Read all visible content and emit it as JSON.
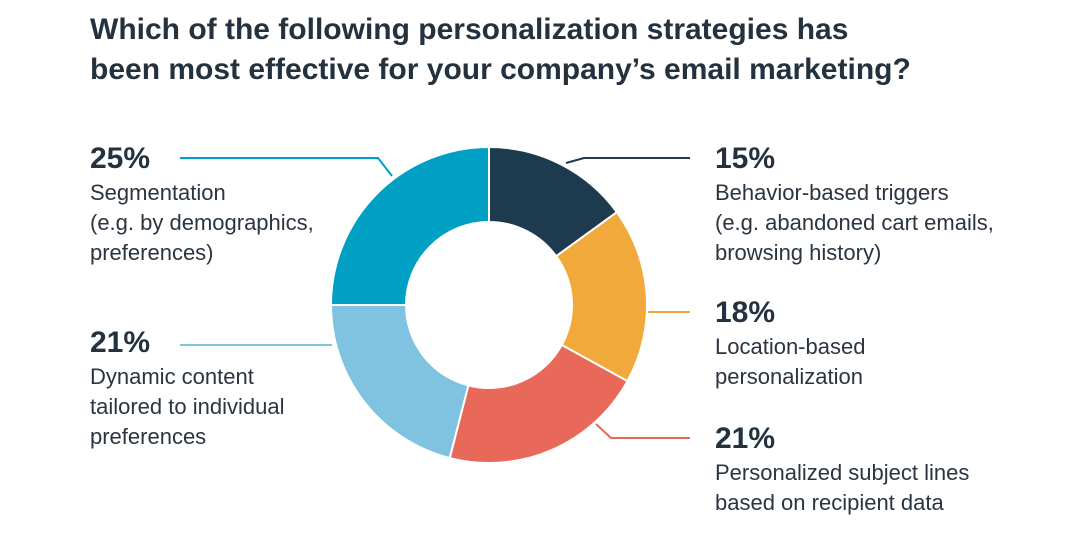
{
  "chart_data": {
    "type": "pie",
    "title_lines": [
      "Which of the following personalization strategies has",
      "been most effective for your company’s email marketing?"
    ],
    "donut": true,
    "slices": [
      {
        "value": 15,
        "pct_label": "15%",
        "label_lines": [
          "Behavior-based triggers",
          "(e.g. abandoned cart emails,",
          "browsing history)"
        ],
        "color": "#1d3a4f"
      },
      {
        "value": 18,
        "pct_label": "18%",
        "label_lines": [
          "Location-based",
          "personalization"
        ],
        "color": "#f0a93a"
      },
      {
        "value": 21,
        "pct_label": "21%",
        "label_lines": [
          "Personalized subject lines",
          "based on recipient data"
        ],
        "color": "#e8685a"
      },
      {
        "value": 21,
        "pct_label": "21%",
        "label_lines": [
          "Dynamic content",
          "tailored to individual",
          "preferences"
        ],
        "color": "#7fc3e0"
      },
      {
        "value": 25,
        "pct_label": "25%",
        "label_lines": [
          "Segmentation",
          "(e.g. by demographics,",
          "preferences)"
        ],
        "color": "#00a0c4"
      }
    ]
  }
}
